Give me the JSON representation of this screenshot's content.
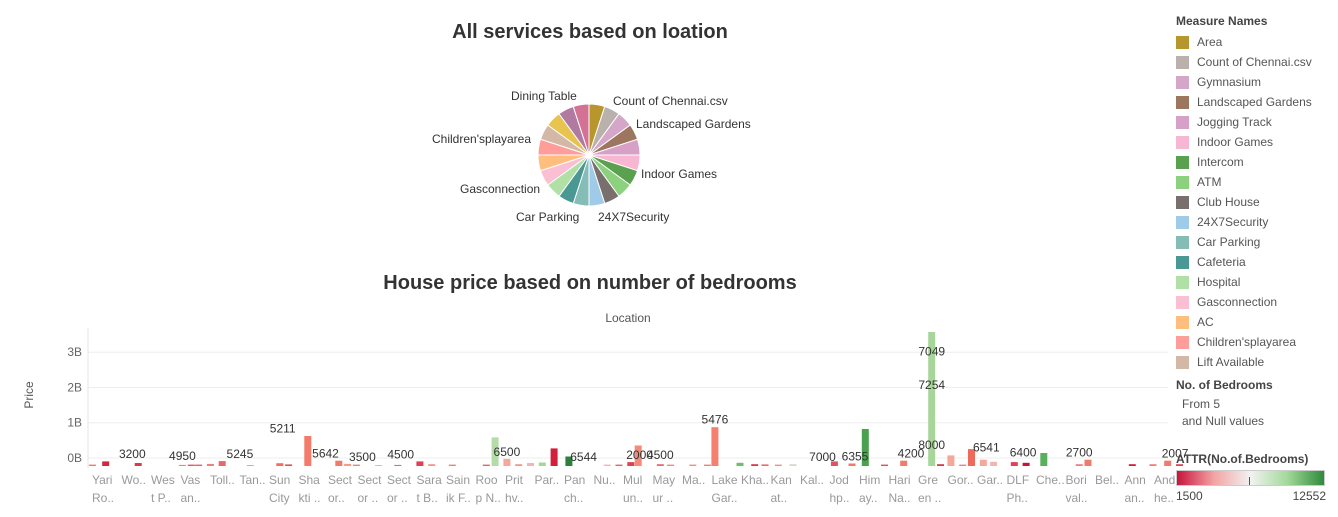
{
  "pie_chart": {
    "title": "All services based on loation",
    "labels": [
      {
        "text": "Dining Table",
        "key": "dining"
      },
      {
        "text": "Count of Chennai.csv",
        "key": "count"
      },
      {
        "text": "Landscaped Gardens",
        "key": "landscaped"
      },
      {
        "text": "Children'splayarea",
        "key": "children"
      },
      {
        "text": "Indoor Games",
        "key": "indoor"
      },
      {
        "text": "Gasconnection",
        "key": "gas"
      },
      {
        "text": "Car Parking",
        "key": "parking"
      },
      {
        "text": "24X7Security",
        "key": "security"
      }
    ]
  },
  "bar_chart": {
    "title": "House price based on number of bedrooms",
    "column_header": "Location",
    "y_axis_title": "Price",
    "y_ticks": [
      "0B",
      "1B",
      "2B",
      "3B"
    ]
  },
  "legend": {
    "title": "Measure Names",
    "items": [
      {
        "label": "Area",
        "color": "#b8962e"
      },
      {
        "label": "Count of Chennai.csv",
        "color": "#bab0ac"
      },
      {
        "label": "Gymnasium",
        "color": "#d4a6c8"
      },
      {
        "label": "Landscaped Gardens",
        "color": "#9d7660"
      },
      {
        "label": "Jogging Track",
        "color": "#d7a1c7"
      },
      {
        "label": "Indoor Games",
        "color": "#f7b6d2"
      },
      {
        "label": "Intercom",
        "color": "#59a14f"
      },
      {
        "label": "ATM",
        "color": "#8cd17d"
      },
      {
        "label": "Club House",
        "color": "#79706e"
      },
      {
        "label": "24X7Security",
        "color": "#a0cbe8"
      },
      {
        "label": "Car Parking",
        "color": "#86bcb6"
      },
      {
        "label": "Cafeteria",
        "color": "#499894"
      },
      {
        "label": "Hospital",
        "color": "#b1e0a6"
      },
      {
        "label": "Gasconnection",
        "color": "#fabfd2"
      },
      {
        "label": "AC",
        "color": "#ffbe7d"
      },
      {
        "label": "Children'splayarea",
        "color": "#ff9d9a"
      },
      {
        "label": "Lift Available",
        "color": "#d4b8a6"
      }
    ]
  },
  "bedrooms_legend": {
    "title": "No. of Bedrooms",
    "line1": "From 5",
    "line2": "and Null values"
  },
  "attr_legend": {
    "title": "ATTR(No.of.Bedrooms)",
    "min": "1500",
    "max": "12552"
  },
  "chart_data": [
    {
      "type": "pie",
      "title": "All services based on loation",
      "slices": [
        {
          "name": "Area",
          "value": 1,
          "color": "#b8962e"
        },
        {
          "name": "Count of Chennai.csv",
          "value": 1,
          "color": "#bab0ac"
        },
        {
          "name": "Gymnasium",
          "value": 1,
          "color": "#d4a6c8"
        },
        {
          "name": "Landscaped Gardens",
          "value": 1,
          "color": "#9d7660"
        },
        {
          "name": "Jogging Track",
          "value": 1,
          "color": "#d7a1c7"
        },
        {
          "name": "Indoor Games",
          "value": 1,
          "color": "#f7b6d2"
        },
        {
          "name": "Intercom",
          "value": 1,
          "color": "#59a14f"
        },
        {
          "name": "ATM",
          "value": 1,
          "color": "#8cd17d"
        },
        {
          "name": "Club House",
          "value": 1,
          "color": "#79706e"
        },
        {
          "name": "24X7Security",
          "value": 1,
          "color": "#a0cbe8"
        },
        {
          "name": "Car Parking",
          "value": 1,
          "color": "#86bcb6"
        },
        {
          "name": "Cafeteria",
          "value": 1,
          "color": "#499894"
        },
        {
          "name": "Hospital",
          "value": 1,
          "color": "#b1e0a6"
        },
        {
          "name": "Gasconnection",
          "value": 1,
          "color": "#fabfd2"
        },
        {
          "name": "AC",
          "value": 1,
          "color": "#ffbe7d"
        },
        {
          "name": "Children'splayarea",
          "value": 1,
          "color": "#ff9d9a"
        },
        {
          "name": "Lift Available",
          "value": 1,
          "color": "#d4b8a6"
        },
        {
          "name": "Dining Table",
          "value": 1,
          "color": "#e8c34f"
        },
        {
          "name": "",
          "value": 1,
          "color": "#b07aa1"
        },
        {
          "name": "",
          "value": 1,
          "color": "#d37295"
        }
      ]
    },
    {
      "type": "bar",
      "title": "House price based on number of bedrooms",
      "xlabel": "Location",
      "ylabel": "Price",
      "ylim": [
        0,
        3800000000
      ],
      "ytick_values": [
        0,
        1000000000,
        2000000000,
        3000000000
      ],
      "ytick_labels": [
        "0B",
        "1B",
        "2B",
        "3B"
      ],
      "categories": [
        {
          "l1": "Yari",
          "l2": "Ro.."
        },
        {
          "l1": "Wo..",
          "l2": ""
        },
        {
          "l1": "Wes",
          "l2": "t P.."
        },
        {
          "l1": "Vas",
          "l2": "an.."
        },
        {
          "l1": "Toll..",
          "l2": ""
        },
        {
          "l1": "Tan..",
          "l2": ""
        },
        {
          "l1": "Sun",
          "l2": "City"
        },
        {
          "l1": "Sha",
          "l2": "kti .."
        },
        {
          "l1": "Sect",
          "l2": "or.."
        },
        {
          "l1": "Sect",
          "l2": "or .."
        },
        {
          "l1": "Sect",
          "l2": "or .."
        },
        {
          "l1": "Sara",
          "l2": "t B.."
        },
        {
          "l1": "Sain",
          "l2": "ik F.."
        },
        {
          "l1": "Roo",
          "l2": "p N.."
        },
        {
          "l1": "Prit",
          "l2": "hv.."
        },
        {
          "l1": "Par..",
          "l2": ""
        },
        {
          "l1": "Pan",
          "l2": "ch.."
        },
        {
          "l1": "Nu..",
          "l2": ""
        },
        {
          "l1": "Mul",
          "l2": "un.."
        },
        {
          "l1": "May",
          "l2": "ur .."
        },
        {
          "l1": "Ma..",
          "l2": ""
        },
        {
          "l1": "Lake",
          "l2": "Gar.."
        },
        {
          "l1": "Kha..",
          "l2": ""
        },
        {
          "l1": "Kan",
          "l2": "at.."
        },
        {
          "l1": "Kal..",
          "l2": ""
        },
        {
          "l1": "Jod",
          "l2": "hp.."
        },
        {
          "l1": "Him",
          "l2": "ay.."
        },
        {
          "l1": "Hari",
          "l2": "Na.."
        },
        {
          "l1": "Gre",
          "l2": "en .."
        },
        {
          "l1": "Gor..",
          "l2": ""
        },
        {
          "l1": "Gar..",
          "l2": ""
        },
        {
          "l1": "DLF",
          "l2": "Ph.."
        },
        {
          "l1": "Che..",
          "l2": ""
        },
        {
          "l1": "Bori",
          "l2": "val.."
        },
        {
          "l1": "Bel..",
          "l2": ""
        },
        {
          "l1": "Ann",
          "l2": "an.."
        },
        {
          "l1": "And",
          "l2": "he.."
        }
      ],
      "color_scale": {
        "field": "ATTR(No.of.Bedrooms)",
        "min": 1500,
        "max": 12552
      },
      "bars": [
        {
          "cat": 0,
          "off": -0.35,
          "v": 40000000,
          "c": "#f37b6e"
        },
        {
          "cat": 0,
          "off": 0.1,
          "v": 130000000,
          "c": "#cc2a45"
        },
        {
          "cat": 1,
          "off": 0.2,
          "v": 85000000,
          "c": "#d93a4a"
        },
        {
          "cat": 3,
          "off": -0.3,
          "v": 30000000,
          "c": "#f07f7f"
        },
        {
          "cat": 3,
          "off": 0.0,
          "v": 40000000,
          "c": "#e35a5e"
        },
        {
          "cat": 3,
          "off": 0.25,
          "v": 40000000,
          "c": "#e9605f"
        },
        {
          "cat": 4,
          "off": -0.35,
          "v": 60000000,
          "c": "#ee8078"
        },
        {
          "cat": 4,
          "off": 0.05,
          "v": 140000000,
          "c": "#e8686a"
        },
        {
          "cat": 5,
          "off": 0.0,
          "v": 25000000,
          "c": "#ef9090"
        },
        {
          "cat": 6,
          "off": 0.0,
          "v": 80000000,
          "c": "#f46d5d"
        },
        {
          "cat": 6,
          "off": 0.3,
          "v": 45000000,
          "c": "#e35050"
        },
        {
          "cat": 7,
          "off": -0.05,
          "v": 850000000,
          "c": "#f37b6a"
        },
        {
          "cat": 8,
          "off": 0.0,
          "v": 150000000,
          "c": "#f07a6c"
        },
        {
          "cat": 8,
          "off": 0.3,
          "v": 60000000,
          "c": "#f49b8a"
        },
        {
          "cat": 8,
          "off": 0.6,
          "v": 40000000,
          "c": "#f07f7f"
        },
        {
          "cat": 9,
          "off": 0.35,
          "v": 25000000,
          "c": "#f7a59a"
        },
        {
          "cat": 10,
          "off": 0.0,
          "v": 30000000,
          "c": "#e8686a"
        },
        {
          "cat": 11,
          "off": -0.25,
          "v": 130000000,
          "c": "#dd4452"
        },
        {
          "cat": 11,
          "off": 0.15,
          "v": 50000000,
          "c": "#f29588"
        },
        {
          "cat": 12,
          "off": -0.15,
          "v": 40000000,
          "c": "#f07f7f"
        },
        {
          "cat": 13,
          "off": 0.0,
          "v": 40000000,
          "c": "#e8606a"
        },
        {
          "cat": 13,
          "off": 0.3,
          "v": 810000000,
          "c": "#b5dca8"
        },
        {
          "cat": 14,
          "off": -0.3,
          "v": 200000000,
          "c": "#f4a79a"
        },
        {
          "cat": 14,
          "off": 0.1,
          "v": 50000000,
          "c": "#f0978c"
        },
        {
          "cat": 14,
          "off": 0.5,
          "v": 85000000,
          "c": "#f2b5b5"
        },
        {
          "cat": 15,
          "off": -0.1,
          "v": 100000000,
          "c": "#a5d69a"
        },
        {
          "cat": 15,
          "off": 0.3,
          "v": 500000000,
          "c": "#d21f3c"
        },
        {
          "cat": 16,
          "off": -0.2,
          "v": 270000000,
          "c": "#2d7f3c"
        },
        {
          "cat": 17,
          "off": 0.1,
          "v": 40000000,
          "c": "#f7b3a8"
        },
        {
          "cat": 17,
          "off": 0.5,
          "v": 40000000,
          "c": "#e7606a"
        },
        {
          "cat": 18,
          "off": -0.1,
          "v": 110000000,
          "c": "#dd4452"
        },
        {
          "cat": 18,
          "off": 0.15,
          "v": 580000000,
          "c": "#f48a7a"
        },
        {
          "cat": 19,
          "off": -0.1,
          "v": 50000000,
          "c": "#e8686a"
        },
        {
          "cat": 19,
          "off": 0.25,
          "v": 40000000,
          "c": "#f08a82"
        },
        {
          "cat": 20,
          "off": 0.0,
          "v": 40000000,
          "c": "#f58f7a"
        },
        {
          "cat": 20,
          "off": 0.5,
          "v": 40000000,
          "c": "#f07f7f"
        },
        {
          "cat": 21,
          "off": -0.25,
          "v": 1100000000,
          "c": "#f4806f"
        },
        {
          "cat": 21,
          "off": 0.6,
          "v": 90000000,
          "c": "#6cbf6c"
        },
        {
          "cat": 22,
          "off": 0.1,
          "v": 50000000,
          "c": "#d93a4a"
        },
        {
          "cat": 22,
          "off": 0.45,
          "v": 45000000,
          "c": "#e86a6a"
        },
        {
          "cat": 23,
          "off": -0.1,
          "v": 40000000,
          "c": "#f09090"
        },
        {
          "cat": 23,
          "off": 0.4,
          "v": 50000000,
          "c": "#d8d8c8"
        },
        {
          "cat": 25,
          "off": -0.2,
          "v": 130000000,
          "c": "#e35060"
        },
        {
          "cat": 25,
          "off": 0.4,
          "v": 70000000,
          "c": "#f07a6c"
        },
        {
          "cat": 26,
          "off": -0.15,
          "v": 1050000000,
          "c": "#4aa14e"
        },
        {
          "cat": 26,
          "off": 0.5,
          "v": 40000000,
          "c": "#e35050"
        },
        {
          "cat": 27,
          "off": 0.15,
          "v": 150000000,
          "c": "#f07a6c"
        },
        {
          "cat": 28,
          "off": 0.1,
          "v": 3800000000,
          "c": "#a8d69a"
        },
        {
          "cat": 28,
          "off": 0.4,
          "v": 50000000,
          "c": "#d93a4a"
        },
        {
          "cat": 29,
          "off": -0.25,
          "v": 300000000,
          "c": "#f4a79a"
        },
        {
          "cat": 29,
          "off": 0.15,
          "v": 40000000,
          "c": "#f07f7f"
        },
        {
          "cat": 29,
          "off": 0.45,
          "v": 480000000,
          "c": "#f06a5c"
        },
        {
          "cat": 30,
          "off": -0.15,
          "v": 180000000,
          "c": "#f4a79a"
        },
        {
          "cat": 30,
          "off": 0.2,
          "v": 120000000,
          "c": "#f2b5b5"
        },
        {
          "cat": 31,
          "off": -0.1,
          "v": 110000000,
          "c": "#dd4452"
        },
        {
          "cat": 31,
          "off": 0.3,
          "v": 90000000,
          "c": "#c8143c"
        },
        {
          "cat": 32,
          "off": -0.1,
          "v": 370000000,
          "c": "#59b05a"
        },
        {
          "cat": 33,
          "off": 0.1,
          "v": 50000000,
          "c": "#f07f7f"
        },
        {
          "cat": 33,
          "off": 0.4,
          "v": 180000000,
          "c": "#f07a6c"
        },
        {
          "cat": 35,
          "off": -0.1,
          "v": 50000000,
          "c": "#d21f3c"
        },
        {
          "cat": 35,
          "off": 0.6,
          "v": 50000000,
          "c": "#f07f7f"
        },
        {
          "cat": 36,
          "off": 0.1,
          "v": 150000000,
          "c": "#f07a6c"
        },
        {
          "cat": 36,
          "off": 0.5,
          "v": 50000000,
          "c": "#dd4452"
        }
      ],
      "labels": [
        {
          "text": "3200",
          "cat": 1,
          "off": 0.0,
          "v": 135000000
        },
        {
          "text": "4950",
          "cat": 2,
          "off": 0.7,
          "v": 90000000
        },
        {
          "text": "5245",
          "cat": 4,
          "off": 0.65,
          "v": 140000000
        },
        {
          "text": "5211",
          "cat": 6,
          "off": 0.1,
          "v": 870000000
        },
        {
          "text": "5642",
          "cat": 7,
          "off": 0.55,
          "v": 155000000
        },
        {
          "text": "3500",
          "cat": 8,
          "off": 0.8,
          "v": 60000000
        },
        {
          "text": "4500",
          "cat": 10,
          "off": 0.1,
          "v": 130000000
        },
        {
          "text": "6500",
          "cat": 13,
          "off": 0.7,
          "v": 200000000
        },
        {
          "text": "6544",
          "cat": 15,
          "off": 1.3,
          "v": 60000000
        },
        {
          "text": "2000",
          "cat": 17,
          "off": 1.2,
          "v": 110000000
        },
        {
          "text": "4500",
          "cat": 18,
          "off": 0.9,
          "v": 110000000
        },
        {
          "text": "5476",
          "cat": 21,
          "off": -0.25,
          "v": 1120000000
        },
        {
          "text": "7000",
          "cat": 24,
          "off": 0.4,
          "v": 50000000
        },
        {
          "text": "6355",
          "cat": 25,
          "off": 0.5,
          "v": 70000000
        },
        {
          "text": "4200",
          "cat": 27,
          "off": 0.4,
          "v": 150000000
        },
        {
          "text": "7049",
          "cat": 28,
          "off": 0.1,
          "v": 3050000000
        },
        {
          "text": "7254",
          "cat": 28,
          "off": 0.1,
          "v": 2100000000
        },
        {
          "text": "8000",
          "cat": 28,
          "off": 0.1,
          "v": 390000000
        },
        {
          "text": "6541",
          "cat": 30,
          "off": -0.05,
          "v": 320000000
        },
        {
          "text": "6400",
          "cat": 31,
          "off": 0.2,
          "v": 190000000
        },
        {
          "text": "2700",
          "cat": 33,
          "off": 0.1,
          "v": 180000000
        },
        {
          "text": "2007",
          "cat": 36,
          "off": 0.35,
          "v": 150000000
        }
      ]
    }
  ]
}
